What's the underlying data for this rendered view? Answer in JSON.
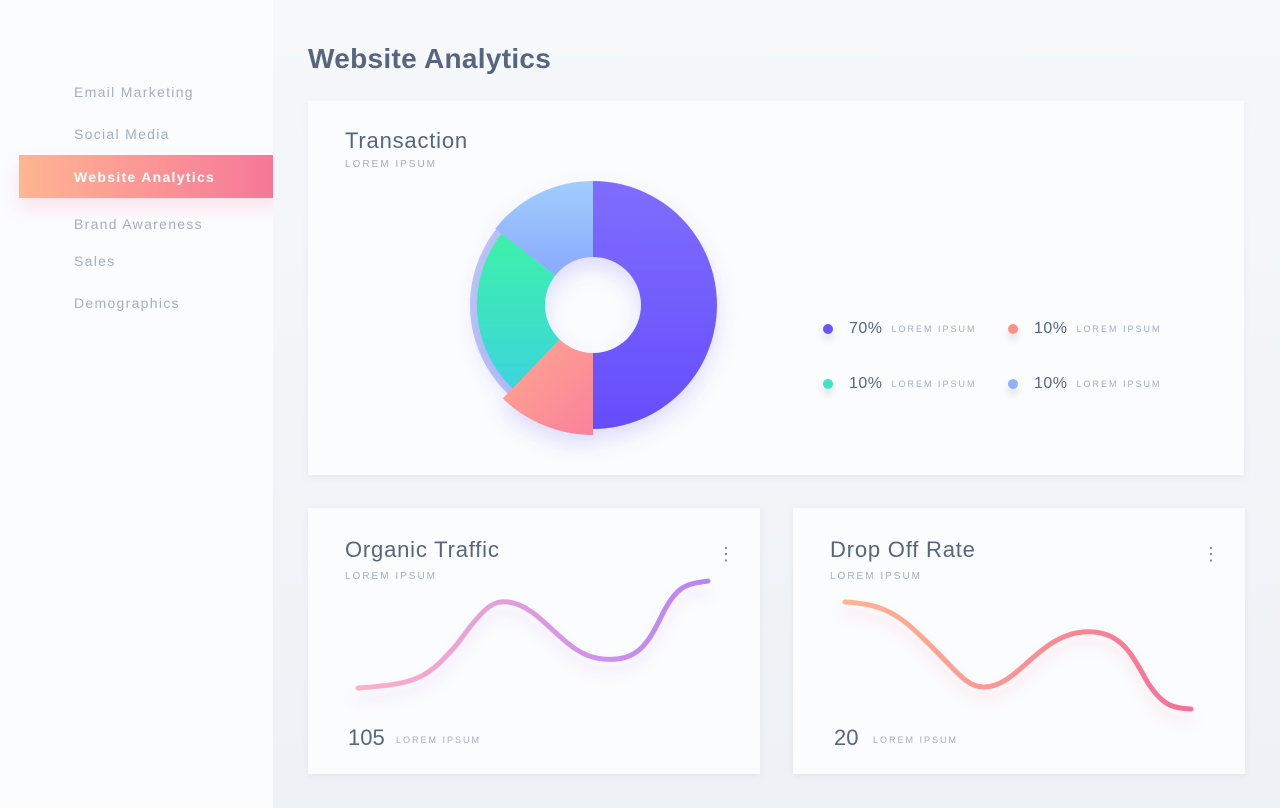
{
  "sidebar": {
    "items": [
      {
        "label": "Email Marketing"
      },
      {
        "label": "Social Media"
      },
      {
        "label": "Website Analytics",
        "active": true
      },
      {
        "label": "Brand Awareness"
      },
      {
        "label": "Sales"
      },
      {
        "label": "Demographics"
      }
    ]
  },
  "page_title": "Website Analytics",
  "transaction": {
    "title": "Transaction",
    "subtitle": "LOREM IPSUM",
    "legend": [
      {
        "value": "70%",
        "label": "LOREM IPSUM",
        "color": "#6a55fd"
      },
      {
        "value": "10%",
        "label": "LOREM IPSUM",
        "color": "#fe8e88"
      },
      {
        "value": "10%",
        "label": "LOREM IPSUM",
        "color": "#3ee4c6"
      },
      {
        "value": "10%",
        "label": "LOREM IPSUM",
        "color": "#8fb1fe"
      }
    ]
  },
  "chart_data": {
    "type": "pie",
    "variant": "donut",
    "categories": [
      "LOREM IPSUM",
      "LOREM IPSUM",
      "LOREM IPSUM",
      "LOREM IPSUM"
    ],
    "values": [
      70,
      10,
      10,
      10
    ],
    "colors": [
      "#6a55fd",
      "#fe8e88",
      "#3ee4c6",
      "#8fb1fe"
    ]
  },
  "organic": {
    "title": "Organic Traffic",
    "subtitle": "LOREM IPSUM",
    "value": "105",
    "value_label": "LOREM IPSUM"
  },
  "dropoff": {
    "title": "Drop Off Rate",
    "subtitle": "LOREM IPSUM",
    "value": "20",
    "value_label": "LOREM IPSUM"
  }
}
